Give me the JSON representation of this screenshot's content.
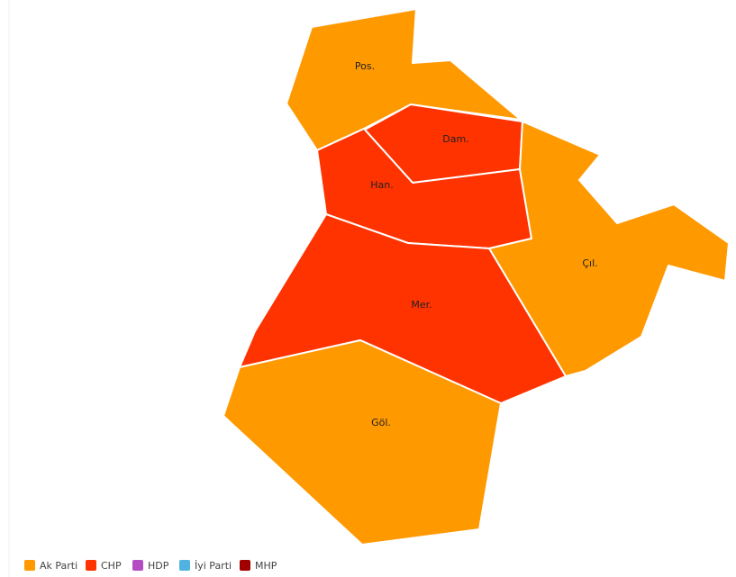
{
  "regions": [
    {
      "label": "Pos.",
      "color": "#ff9900"
    },
    {
      "label": "Dam.",
      "color": "#ff3300"
    },
    {
      "label": "Han.",
      "color": "#ff3300"
    },
    {
      "label": "Çıl.",
      "color": "#ff9900"
    },
    {
      "label": "Mer.",
      "color": "#ff3300"
    },
    {
      "label": "Göl.",
      "color": "#ff9900"
    }
  ],
  "legend": [
    {
      "name": "Ak Parti",
      "color": "#ff9900"
    },
    {
      "name": "CHP",
      "color": "#ff3300"
    },
    {
      "name": "HDP",
      "color": "#b44cc4"
    },
    {
      "name": "İyi Parti",
      "color": "#4fb2e0"
    },
    {
      "name": "MHP",
      "color": "#a00000"
    }
  ]
}
